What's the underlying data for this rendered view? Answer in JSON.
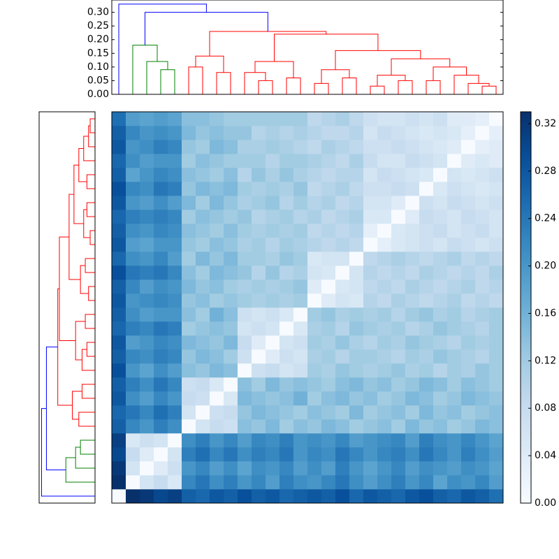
{
  "chart_data": {
    "type": "clustermap",
    "colormap": "Blues",
    "clim": [
      0,
      0.33
    ],
    "cticks": [
      {
        "value": 0,
        "label": "0.00"
      },
      {
        "value": 0.04,
        "label": "0.04"
      },
      {
        "value": 0.08,
        "label": "0.08"
      },
      {
        "value": 0.12,
        "label": "0.12"
      },
      {
        "value": 0.16,
        "label": "0.16"
      },
      {
        "value": 0.2,
        "label": "0.20"
      },
      {
        "value": 0.24,
        "label": "0.24"
      },
      {
        "value": 0.28,
        "label": "0.28"
      },
      {
        "value": 0.32,
        "label": "0.32"
      }
    ],
    "ylim": [
      0,
      0.345
    ],
    "yticks": [
      {
        "value": 0,
        "label": "0.00"
      },
      {
        "value": 0.05,
        "label": "0.05"
      },
      {
        "value": 0.1,
        "label": "0.10"
      },
      {
        "value": 0.15,
        "label": "0.15"
      },
      {
        "value": 0.2,
        "label": "0.20"
      },
      {
        "value": 0.25,
        "label": "0.25"
      },
      {
        "value": 0.3,
        "label": "0.30"
      }
    ],
    "tree": {
      "height": 0.33,
      "color": "blue",
      "children": [
        0,
        {
          "height": 0.3,
          "color": "blue",
          "children": [
            {
              "height": 0.18,
              "color": "green",
              "children": [
                1,
                {
                  "height": 0.12,
                  "children": [
                    2,
                    {
                      "height": 0.09,
                      "children": [
                        3,
                        4
                      ]
                    }
                  ]
                }
              ]
            },
            {
              "height": 0.23,
              "color": "red",
              "children": [
                {
                  "height": 0.14,
                  "children": [
                    {
                      "height": 0.1,
                      "children": [
                        5,
                        6
                      ]
                    },
                    {
                      "height": 0.08,
                      "children": [
                        7,
                        8
                      ]
                    }
                  ]
                },
                {
                  "height": 0.22,
                  "children": [
                    {
                      "height": 0.12,
                      "children": [
                        {
                          "height": 0.08,
                          "children": [
                            9,
                            {
                              "height": 0.05,
                              "children": [
                                10,
                                11
                              ]
                            }
                          ]
                        },
                        {
                          "height": 0.06,
                          "children": [
                            12,
                            13
                          ]
                        }
                      ]
                    },
                    {
                      "height": 0.16,
                      "children": [
                        {
                          "height": 0.09,
                          "children": [
                            {
                              "height": 0.04,
                              "children": [
                                14,
                                15
                              ]
                            },
                            {
                              "height": 0.06,
                              "children": [
                                16,
                                17
                              ]
                            }
                          ]
                        },
                        {
                          "height": 0.13,
                          "children": [
                            {
                              "height": 0.07,
                              "children": [
                                {
                                  "height": 0.03,
                                  "children": [
                                    18,
                                    19
                                  ]
                                },
                                {
                                  "height": 0.05,
                                  "children": [
                                    20,
                                    21
                                  ]
                                }
                              ]
                            },
                            {
                              "height": 0.1,
                              "children": [
                                {
                                  "height": 0.05,
                                  "children": [
                                    22,
                                    23
                                  ]
                                },
                                {
                                  "height": 0.07,
                                  "children": [
                                    24,
                                    {
                                      "height": 0.04,
                                      "children": [
                                        25,
                                        {
                                          "height": 0.03,
                                          "children": [
                                            26,
                                            27
                                          ]
                                        }
                                      ]
                                    }
                                  ]
                                }
                              ]
                            }
                          ]
                        }
                      ]
                    }
                  ]
                }
              ]
            }
          ]
        }
      ]
    },
    "matrix": [
      [
        0,
        0.33,
        0.32,
        0.3,
        0.31,
        0.27,
        0.26,
        0.28,
        0.27,
        0.29,
        0.27,
        0.28,
        0.26,
        0.27,
        0.28,
        0.27,
        0.29,
        0.26,
        0.28,
        0.27,
        0.26,
        0.28,
        0.29,
        0.27,
        0.26,
        0.28,
        0.27,
        0.25
      ],
      [
        0,
        0.06,
        0.08,
        0.05,
        0.22,
        0.24,
        0.21,
        0.23,
        0.2,
        0.22,
        0.19,
        0.23,
        0.21,
        0.2,
        0.22,
        0.24,
        0.21,
        0.19,
        0.21,
        0.23,
        0.2,
        0.22,
        0.18,
        0.21,
        0.2,
        0.22,
        0.19
      ],
      [
        0,
        0.04,
        0.07,
        0.2,
        0.22,
        0.19,
        0.21,
        0.18,
        0.21,
        0.2,
        0.22,
        0.19,
        0.21,
        0.19,
        0.23,
        0.2,
        0.18,
        0.2,
        0.22,
        0.19,
        0.21,
        0.2,
        0.19,
        0.21,
        0.2,
        0.18
      ],
      [
        0,
        0.06,
        0.23,
        0.25,
        0.22,
        0.24,
        0.21,
        0.23,
        0.22,
        0.24,
        0.2,
        0.22,
        0.21,
        0.24,
        0.22,
        0.2,
        0.22,
        0.23,
        0.21,
        0.24,
        0.22,
        0.2,
        0.23,
        0.21,
        0.19
      ],
      [
        0,
        0.21,
        0.23,
        0.2,
        0.22,
        0.19,
        0.22,
        0.21,
        0.23,
        0.2,
        0.21,
        0.2,
        0.22,
        0.19,
        0.2,
        0.21,
        0.22,
        0.19,
        0.23,
        0.21,
        0.2,
        0.22,
        0.2,
        0.18
      ],
      [
        0,
        0.06,
        0.08,
        0.07,
        0.14,
        0.13,
        0.15,
        0.12,
        0.14,
        0.13,
        0.15,
        0.14,
        0.12,
        0.13,
        0.14,
        0.12,
        0.15,
        0.13,
        0.14,
        0.12,
        0.13,
        0.15,
        0.14
      ],
      [
        0,
        0.07,
        0.08,
        0.13,
        0.15,
        0.14,
        0.13,
        0.12,
        0.14,
        0.13,
        0.12,
        0.15,
        0.12,
        0.13,
        0.14,
        0.12,
        0.15,
        0.13,
        0.14,
        0.12,
        0.13,
        0.14
      ],
      [
        0,
        0.05,
        0.15,
        0.14,
        0.13,
        0.14,
        0.16,
        0.12,
        0.14,
        0.15,
        0.13,
        0.14,
        0.12,
        0.13,
        0.15,
        0.14,
        0.12,
        0.13,
        0.15,
        0.14,
        0.13
      ],
      [
        0,
        0.14,
        0.12,
        0.15,
        0.13,
        0.14,
        0.13,
        0.12,
        0.14,
        0.15,
        0.13,
        0.14,
        0.12,
        0.13,
        0.15,
        0.14,
        0.12,
        0.14,
        0.13,
        0.12
      ],
      [
        0,
        0.07,
        0.08,
        0.06,
        0.07,
        0.12,
        0.11,
        0.13,
        0.12,
        0.11,
        0.12,
        0.13,
        0.11,
        0.12,
        0.1,
        0.12,
        0.11,
        0.13,
        0.12
      ],
      [
        0,
        0.04,
        0.07,
        0.06,
        0.11,
        0.12,
        0.1,
        0.12,
        0.12,
        0.11,
        0.1,
        0.12,
        0.11,
        0.13,
        0.12,
        0.11,
        0.1,
        0.12
      ],
      [
        0,
        0.06,
        0.07,
        0.12,
        0.11,
        0.13,
        0.11,
        0.1,
        0.12,
        0.11,
        0.13,
        0.12,
        0.11,
        0.1,
        0.12,
        0.11,
        0.12
      ],
      [
        0,
        0.05,
        0.11,
        0.12,
        0.1,
        0.13,
        0.12,
        0.11,
        0.12,
        0.1,
        0.11,
        0.13,
        0.12,
        0.11,
        0.1,
        0.12
      ],
      [
        0,
        0.12,
        0.13,
        0.11,
        0.12,
        0.11,
        0.12,
        0.1,
        0.12,
        0.13,
        0.11,
        0.12,
        0.1,
        0.11,
        0.12
      ],
      [
        0,
        0.04,
        0.06,
        0.05,
        0.1,
        0.09,
        0.11,
        0.1,
        0.09,
        0.1,
        0.11,
        0.09,
        0.1,
        0.09
      ],
      [
        0,
        0.05,
        0.06,
        0.09,
        0.1,
        0.09,
        0.11,
        0.1,
        0.09,
        0.1,
        0.11,
        0.09,
        0.1
      ],
      [
        0,
        0.06,
        0.1,
        0.09,
        0.1,
        0.09,
        0.11,
        0.1,
        0.09,
        0.1,
        0.09,
        0.11
      ],
      [
        0,
        0.09,
        0.1,
        0.11,
        0.1,
        0.09,
        0.1,
        0.11,
        0.09,
        0.1,
        0.09
      ],
      [
        0,
        0.03,
        0.05,
        0.06,
        0.07,
        0.06,
        0.08,
        0.07,
        0.06,
        0.07
      ],
      [
        0,
        0.05,
        0.06,
        0.07,
        0.08,
        0.06,
        0.07,
        0.08,
        0.06
      ],
      [
        0,
        0.04,
        0.08,
        0.07,
        0.06,
        0.08,
        0.07,
        0.06
      ],
      [
        0,
        0.07,
        0.06,
        0.08,
        0.07,
        0.06,
        0.07
      ],
      [
        0,
        0.05,
        0.07,
        0.06,
        0.05,
        0.06
      ],
      [
        0,
        0.06,
        0.05,
        0.06,
        0.07
      ],
      [
        0,
        0.04,
        0.05,
        0.04
      ],
      [
        0,
        0.03,
        0.04
      ],
      [
        0,
        0.03
      ],
      [
        0
      ]
    ]
  }
}
